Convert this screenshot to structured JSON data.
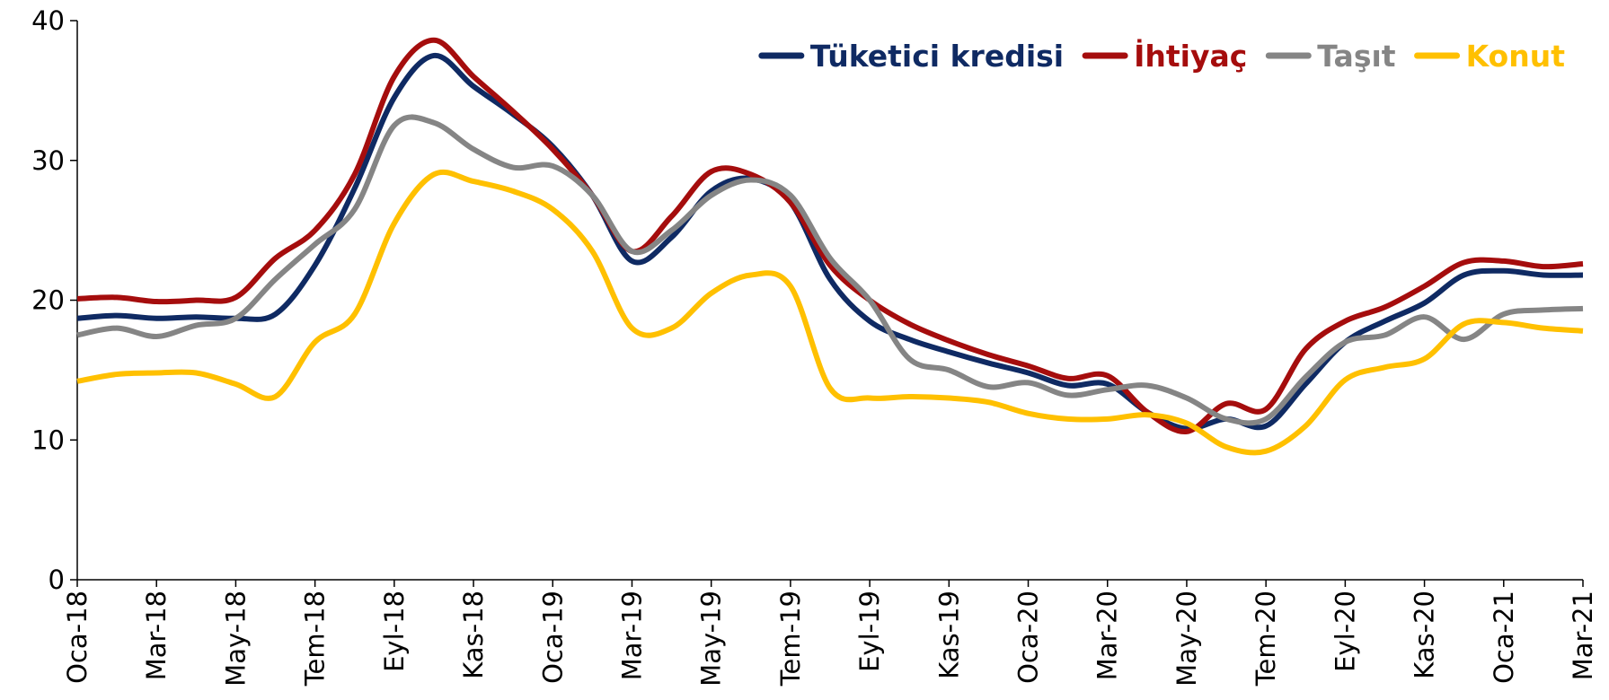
{
  "chart_data": {
    "type": "line",
    "categories": [
      "Oca-18",
      null,
      "Mar-18",
      null,
      "May-18",
      null,
      "Tem-18",
      null,
      "Eyl-18",
      null,
      "Kas-18",
      null,
      "Oca-19",
      null,
      "Mar-19",
      null,
      "May-19",
      null,
      "Tem-19",
      null,
      "Eyl-19",
      null,
      "Kas-19",
      null,
      "Oca-20",
      null,
      "Mar-20",
      null,
      "May-20",
      null,
      "Tem-20",
      null,
      "Eyl-20",
      null,
      "Kas-20",
      null,
      "Oca-21",
      null,
      "Mar-21"
    ],
    "series": [
      {
        "name": "Tüketici kredisi",
        "color": "#0f2a63",
        "values": [
          18.7,
          18.9,
          18.7,
          18.8,
          18.7,
          19.0,
          22.5,
          28,
          34.5,
          37.5,
          35.3,
          33.3,
          31,
          27.5,
          22.8,
          24.5,
          27.8,
          28.7,
          27,
          21.5,
          18.5,
          17.2,
          16.3,
          15.5,
          14.8,
          13.9,
          14,
          12,
          10.8,
          11.5,
          11,
          14,
          17,
          18.5,
          19.8,
          21.8,
          22.1,
          21.8,
          21.8
        ]
      },
      {
        "name": "İhtiyaç",
        "color": "#a50d0d",
        "values": [
          20.1,
          20.2,
          19.9,
          20.0,
          20.2,
          23,
          25,
          29,
          36,
          38.6,
          36,
          33.5,
          30.8,
          27.5,
          23.5,
          26,
          29.2,
          29,
          27,
          22.5,
          20,
          18.3,
          17.1,
          16.1,
          15.3,
          14.4,
          14.6,
          12,
          10.6,
          12.6,
          12.2,
          16.5,
          18.5,
          19.5,
          21,
          22.7,
          22.8,
          22.4,
          22.6
        ]
      },
      {
        "name": "Taşıt",
        "color": "#858585",
        "values": [
          17.5,
          18,
          17.4,
          18.2,
          18.7,
          21.5,
          24,
          26.5,
          32.5,
          32.7,
          30.8,
          29.5,
          29.6,
          27.5,
          23.5,
          25,
          27.5,
          28.6,
          27.5,
          23,
          20,
          15.8,
          15,
          13.8,
          14.1,
          13.2,
          13.6,
          13.9,
          13,
          11.5,
          11.5,
          14.5,
          17,
          17.5,
          18.8,
          17.2,
          19,
          19.3,
          19.4
        ]
      },
      {
        "name": "Konut",
        "color": "#ffc000",
        "values": [
          14.2,
          14.7,
          14.8,
          14.8,
          14,
          13.1,
          17,
          19,
          25.5,
          29,
          28.5,
          27.8,
          26.5,
          23.5,
          18,
          18,
          20.5,
          21.8,
          21,
          13.7,
          13.0,
          13.1,
          13,
          12.7,
          11.9,
          11.5,
          11.5,
          11.8,
          11.2,
          9.5,
          9.2,
          11,
          14.3,
          15.2,
          15.8,
          18.3,
          18.4,
          18,
          17.8
        ]
      }
    ],
    "ylim": [
      0,
      40
    ],
    "yticks": [
      0,
      10,
      20,
      30,
      40
    ],
    "grid": false,
    "legend": "top-right"
  }
}
